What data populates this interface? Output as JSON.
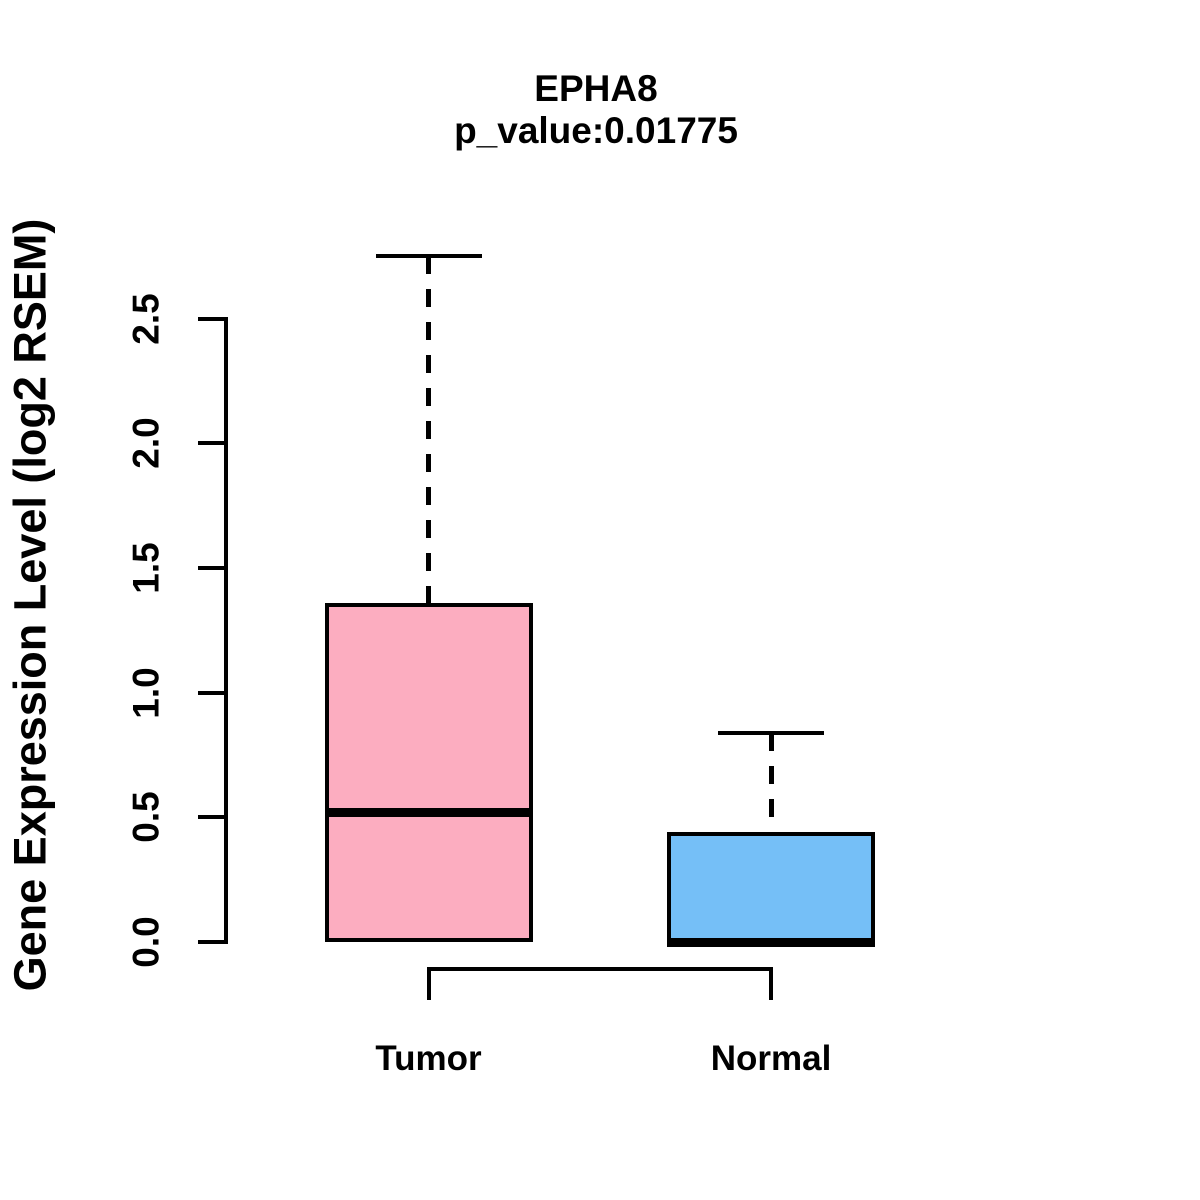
{
  "header": {
    "title": "EPHA8",
    "subtitle": "p_value:0.01775"
  },
  "chart_data": {
    "type": "boxplot",
    "title": "EPHA8",
    "subtitle": "p_value:0.01775",
    "p_value": 0.01775,
    "ylabel": "Gene Expression Level (log2 RSEM)",
    "xlabel": "",
    "categories": [
      "Tumor",
      "Normal"
    ],
    "yticks": [
      "0.0",
      "0.5",
      "1.0",
      "1.5",
      "2.0",
      "2.5"
    ],
    "ylim": [
      0.0,
      2.8
    ],
    "grid": false,
    "legend": "none",
    "series": [
      {
        "name": "Tumor",
        "lower_whisker": 0.0,
        "q1": 0.0,
        "median": 0.52,
        "q3": 1.36,
        "upper_whisker": 2.75,
        "outliers": [],
        "fill_color": "#FCADC0",
        "line_color": "#000000"
      },
      {
        "name": "Normal",
        "lower_whisker": 0.0,
        "q1": 0.0,
        "median": 0.0,
        "q3": 0.44,
        "upper_whisker": 0.84,
        "outliers": [],
        "fill_color": "#75BFF7",
        "line_color": "#000000"
      }
    ],
    "annotations": {
      "comparison_bracket_between": [
        "Tumor",
        "Normal"
      ]
    }
  }
}
